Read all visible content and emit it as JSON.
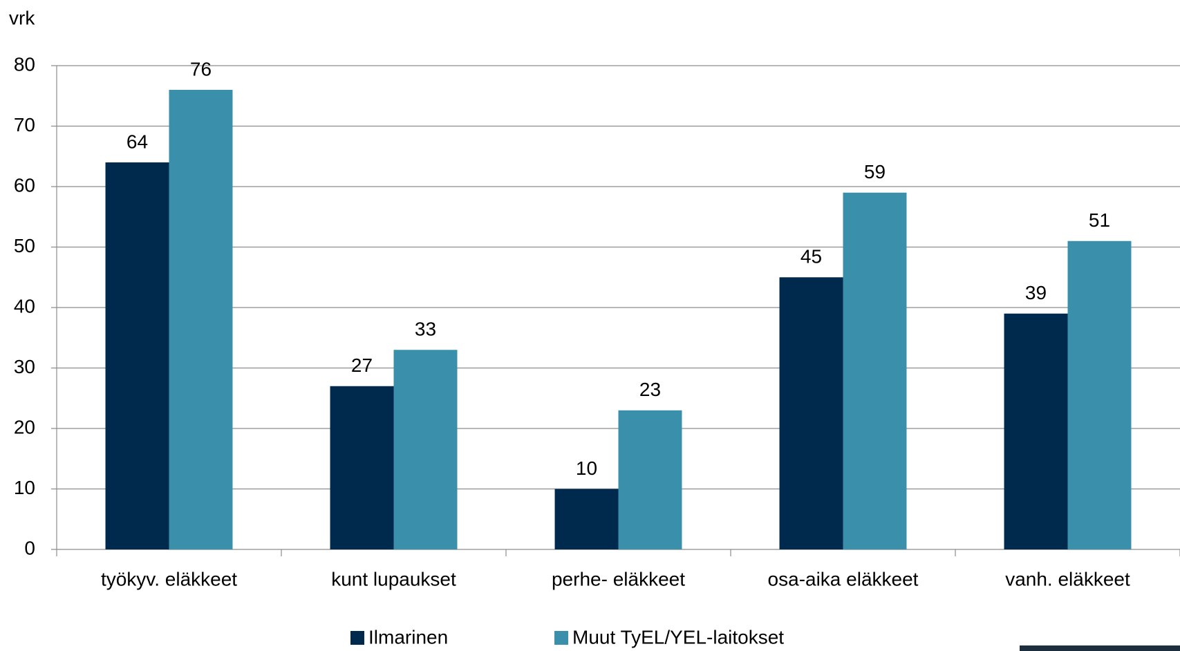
{
  "chart_data": {
    "type": "bar",
    "y_label": "vrk",
    "categories": [
      "työkyv. eläkkeet",
      "kunt lupaukset",
      "perhe- eläkkeet",
      "osa-aika eläkkeet",
      "vanh. eläkkeet"
    ],
    "series": [
      {
        "name": "Ilmarinen",
        "color": "#002a4d",
        "values": [
          64,
          27,
          10,
          45,
          39
        ]
      },
      {
        "name": "Muut TyEL/YEL-laitokset",
        "color": "#3a8fab",
        "values": [
          76,
          33,
          23,
          59,
          51
        ]
      }
    ],
    "ylim": [
      0,
      80
    ],
    "yticks": [
      0,
      10,
      20,
      30,
      40,
      50,
      60,
      70,
      80
    ],
    "grid": true,
    "legend": "bottom"
  }
}
